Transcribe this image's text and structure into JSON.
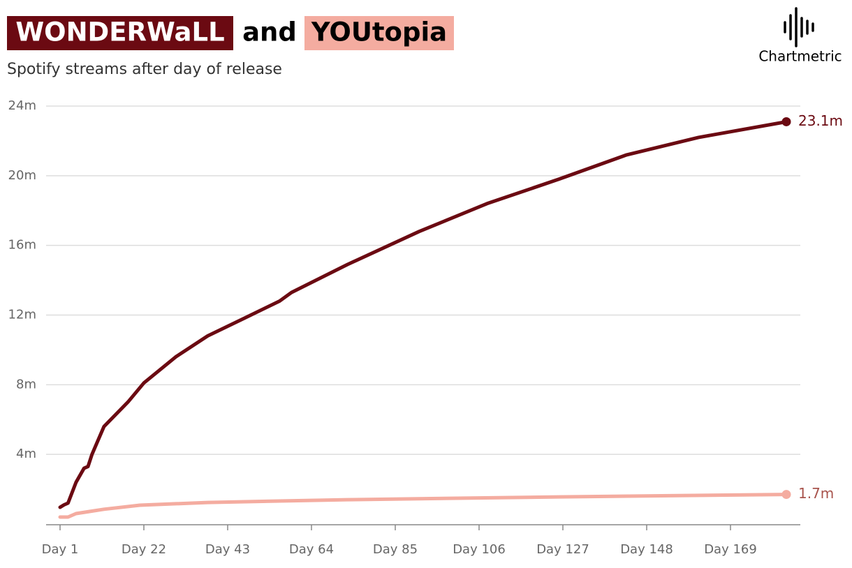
{
  "chart_data": {
    "type": "line",
    "title_join": "and",
    "subtitle": "Spotify streams after day of release",
    "brand": "Chartmetric",
    "xlim": [
      -2.5,
      186.5
    ],
    "xticks": [
      {
        "value": 1,
        "label": "Day 1"
      },
      {
        "value": 22,
        "label": "Day 22"
      },
      {
        "value": 43,
        "label": "Day 43"
      },
      {
        "value": 64,
        "label": "Day 64"
      },
      {
        "value": 85,
        "label": "Day 85"
      },
      {
        "value": 106,
        "label": "Day 106"
      },
      {
        "value": 127,
        "label": "Day 127"
      },
      {
        "value": 148,
        "label": "Day 148"
      },
      {
        "value": 169,
        "label": "Day 169"
      }
    ],
    "ylim": [
      0,
      24
    ],
    "yticks": [
      {
        "value": 4,
        "label": "4m"
      },
      {
        "value": 8,
        "label": "8m"
      },
      {
        "value": 12,
        "label": "12m"
      },
      {
        "value": 16,
        "label": "16m"
      },
      {
        "value": 20,
        "label": "20m"
      },
      {
        "value": 24,
        "label": "24m"
      }
    ],
    "grid": true,
    "series": [
      {
        "name": "WONDERWaLL",
        "color": "#6b0a12",
        "label_color": "#6b0a12",
        "end_label": "23.1m",
        "x": [
          1,
          2,
          3,
          5,
          7,
          8,
          9,
          12,
          18,
          22,
          30,
          38,
          47,
          56,
          59,
          73,
          91,
          108,
          126,
          143,
          161,
          183
        ],
        "values": [
          0.96,
          1.1,
          1.2,
          2.4,
          3.2,
          3.3,
          4.0,
          5.6,
          7.0,
          8.1,
          9.6,
          10.8,
          11.8,
          12.8,
          13.3,
          14.9,
          16.8,
          18.4,
          19.8,
          21.2,
          22.2,
          23.1
        ]
      },
      {
        "name": "YOUtopia",
        "color": "#f4aca0",
        "label_color": "#a8534c",
        "end_label": "1.7m",
        "x": [
          1,
          3,
          5,
          12,
          21,
          38,
          73,
          126,
          183
        ],
        "values": [
          0.4,
          0.4,
          0.6,
          0.85,
          1.08,
          1.24,
          1.4,
          1.56,
          1.7
        ]
      }
    ]
  }
}
